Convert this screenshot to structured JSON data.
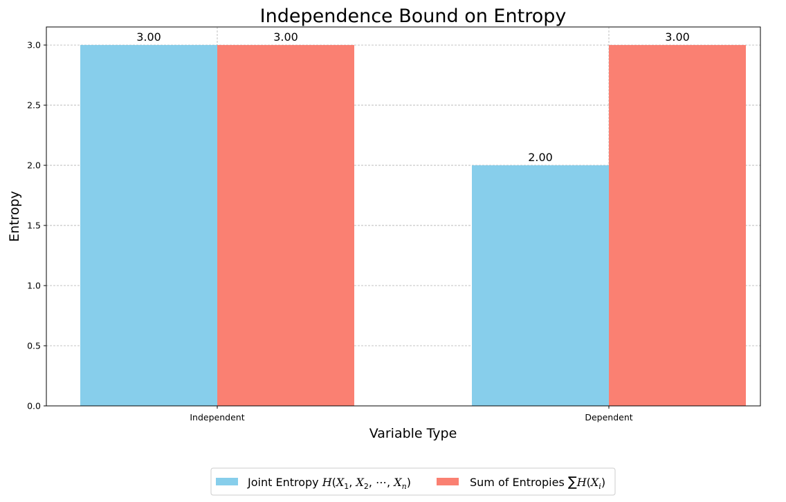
{
  "chart_data": {
    "type": "bar",
    "title": "Independence Bound on Entropy",
    "xlabel": "Variable Type",
    "ylabel": "Entropy",
    "categories": [
      "Independent",
      "Dependent"
    ],
    "series": [
      {
        "name": "Joint Entropy H(X1, X2, ⋯, Xn)",
        "color": "#87ceeb",
        "values": [
          3.0,
          2.0
        ],
        "value_labels": [
          "3.00",
          "2.00"
        ]
      },
      {
        "name": "Sum of Entropies ∑H(Xi)",
        "color": "#fa8072",
        "values": [
          3.0,
          3.0
        ],
        "value_labels": [
          "3.00",
          "3.00"
        ]
      }
    ],
    "ylim": [
      0,
      3.15
    ],
    "yticks": [
      0.0,
      0.5,
      1.0,
      1.5,
      2.0,
      2.5,
      3.0
    ],
    "ytick_labels": [
      "0.0",
      "0.5",
      "1.0",
      "1.5",
      "2.0",
      "2.5",
      "3.0"
    ],
    "grid": true,
    "legend_placement": "bottom-center"
  }
}
